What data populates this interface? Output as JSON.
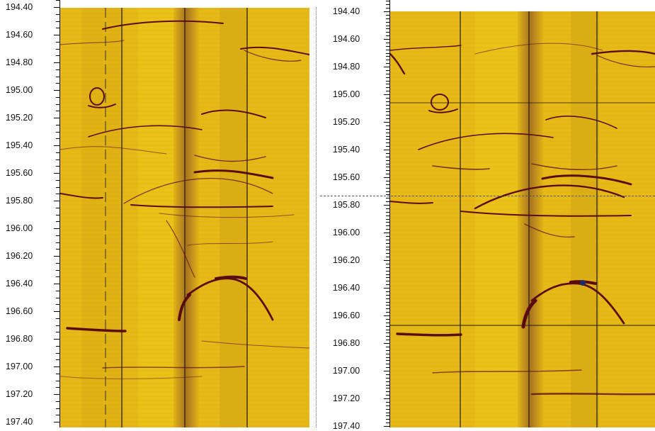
{
  "panels": [
    {
      "id": "left",
      "depth_labels": [
        "194.40",
        "194.60",
        "194.80",
        "195.00",
        "195.20",
        "195.40",
        "195.60",
        "195.80",
        "196.00",
        "196.20",
        "196.40",
        "196.60",
        "196.80",
        "197.00",
        "197.20",
        "197.40"
      ]
    },
    {
      "id": "right",
      "depth_labels": [
        "194.40",
        "194.60",
        "194.80",
        "195.00",
        "195.20",
        "195.40",
        "195.60",
        "195.80",
        "196.00",
        "196.20",
        "196.40",
        "196.60",
        "196.80",
        "197.00",
        "197.20",
        "197.40"
      ]
    }
  ],
  "colors": {
    "background_yellow": "#e2b414",
    "bright_yellow": "#f2d419",
    "dark_band": "#b37e1a",
    "fracture": "#5a0c0c",
    "grid_line": "#1a1a1a"
  }
}
